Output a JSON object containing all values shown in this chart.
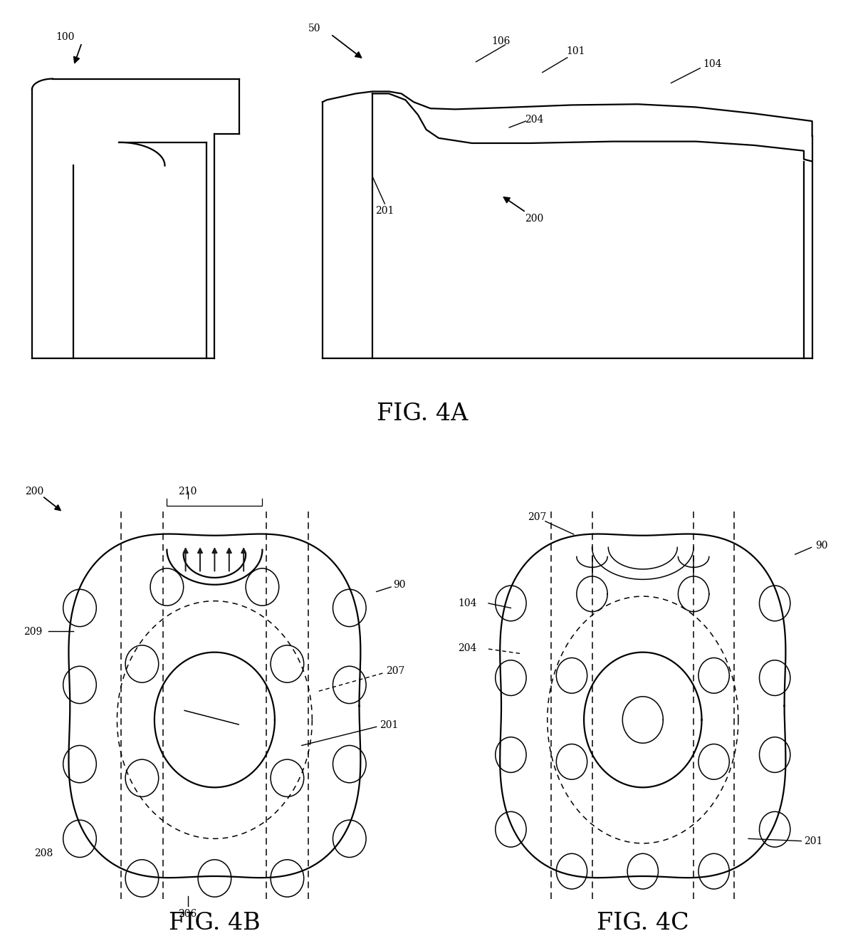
{
  "bg_color": "#ffffff",
  "line_color": "#000000",
  "fig4a_label": "FIG. 4A",
  "fig4b_label": "FIG. 4B",
  "fig4c_label": "FIG. 4C",
  "font_size_caption": 24,
  "font_size_label": 10
}
